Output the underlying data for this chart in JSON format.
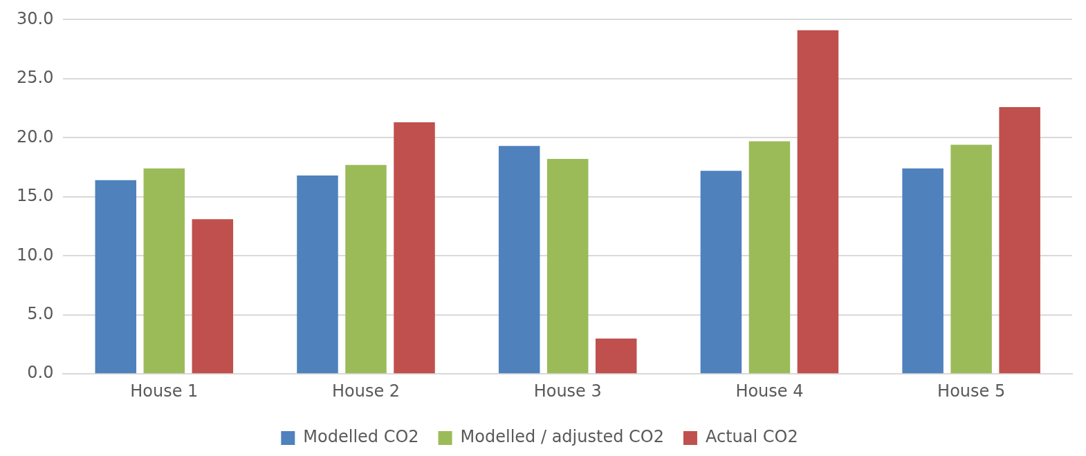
{
  "chart_data": {
    "type": "bar",
    "categories": [
      "House 1",
      "House 2",
      "House 3",
      "House 4",
      "House 5"
    ],
    "series": [
      {
        "name": "Modelled CO2",
        "color": "#4f81bd",
        "values": [
          16.4,
          16.8,
          19.3,
          17.2,
          17.4
        ]
      },
      {
        "name": "Modelled / adjusted CO2",
        "color": "#9bbb59",
        "values": [
          17.4,
          17.7,
          18.2,
          19.7,
          19.4
        ]
      },
      {
        "name": "Actual CO2",
        "color": "#c0504d",
        "values": [
          13.1,
          21.3,
          3.0,
          29.1,
          22.6
        ]
      }
    ],
    "ylim": [
      0,
      30
    ],
    "yticks": [
      {
        "value": 0,
        "label": "0.0"
      },
      {
        "value": 5,
        "label": "5.0"
      },
      {
        "value": 10,
        "label": "10.0"
      },
      {
        "value": 15,
        "label": "15.0"
      },
      {
        "value": 20,
        "label": "20.0"
      },
      {
        "value": 25,
        "label": "25.0"
      },
      {
        "value": 30,
        "label": "30.0"
      }
    ],
    "grid": "y",
    "legend": "bottom"
  }
}
